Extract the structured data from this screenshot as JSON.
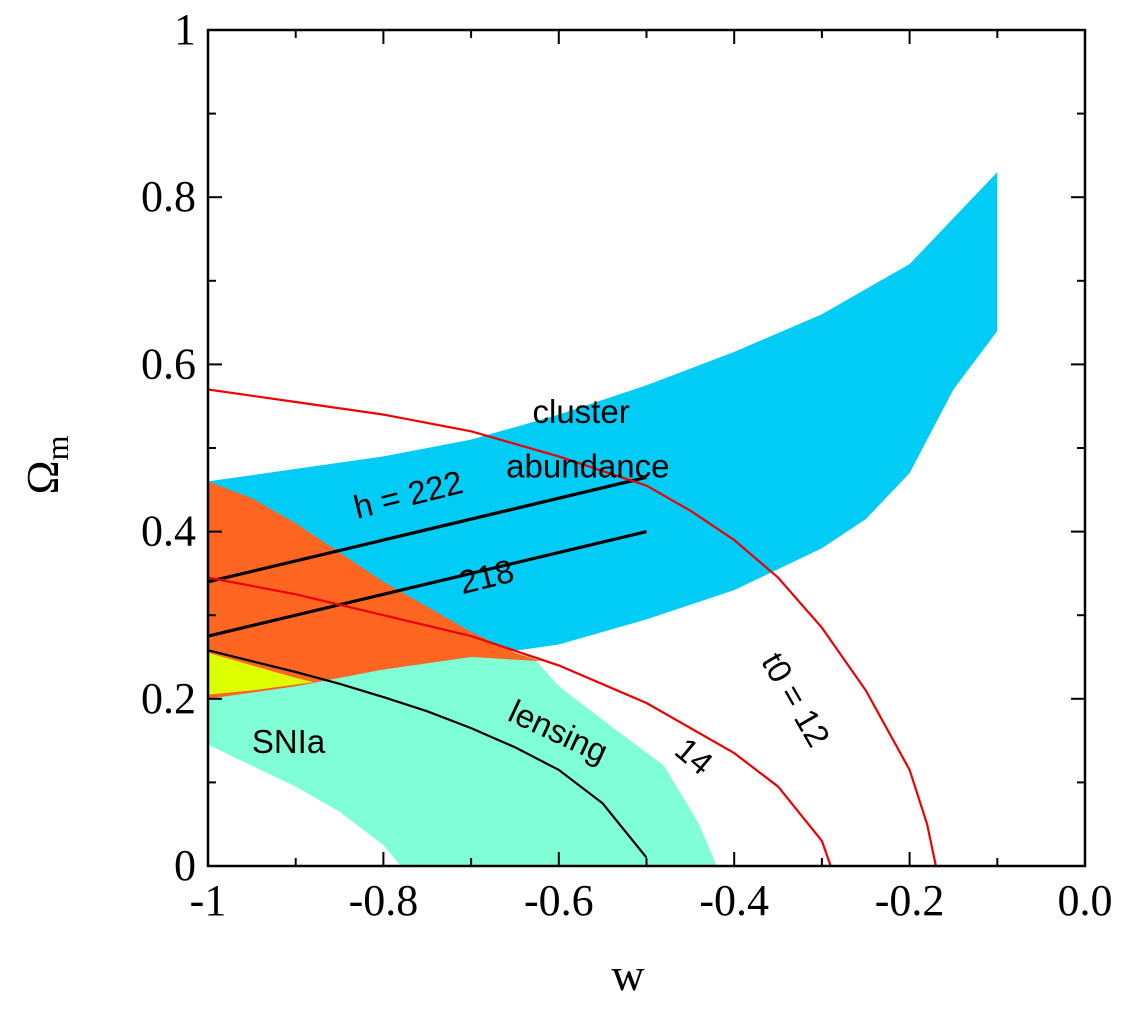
{
  "chart_data": {
    "type": "area",
    "xlabel": "w",
    "ylabel": "Ω",
    "ylabel_subscript": "m",
    "xlim": [
      -1.0,
      0.0
    ],
    "ylim": [
      0.0,
      1.0
    ],
    "xticks": [
      {
        "value": -1.0,
        "label": "-1"
      },
      {
        "value": -0.8,
        "label": "-0.8"
      },
      {
        "value": -0.6,
        "label": "-0.6"
      },
      {
        "value": -0.4,
        "label": "-0.4"
      },
      {
        "value": -0.2,
        "label": "-0.2"
      },
      {
        "value": 0.0,
        "label": "0.0"
      }
    ],
    "yticks": [
      {
        "value": 0.0,
        "label": "0"
      },
      {
        "value": 0.2,
        "label": "0.2"
      },
      {
        "value": 0.4,
        "label": "0.4"
      },
      {
        "value": 0.6,
        "label": "0.6"
      },
      {
        "value": 0.8,
        "label": "0.8"
      },
      {
        "value": 1.0,
        "label": "1"
      }
    ],
    "grid": false,
    "regions": [
      {
        "id": "snia",
        "label": "SNIa",
        "color": "#80ffd6",
        "points": [
          [
            -1.0,
            0.145
          ],
          [
            -0.95,
            0.12
          ],
          [
            -0.9,
            0.095
          ],
          [
            -0.85,
            0.065
          ],
          [
            -0.8,
            0.025
          ],
          [
            -0.78,
            0.0
          ],
          [
            -0.42,
            0.0
          ],
          [
            -0.44,
            0.05
          ],
          [
            -0.48,
            0.12
          ],
          [
            -0.55,
            0.175
          ],
          [
            -0.6,
            0.215
          ],
          [
            -0.63,
            0.25
          ],
          [
            -0.7,
            0.265
          ],
          [
            -0.8,
            0.26
          ],
          [
            -0.9,
            0.255
          ],
          [
            -1.0,
            0.255
          ]
        ]
      },
      {
        "id": "cluster-abundance",
        "label_lines": [
          "cluster",
          "abundance"
        ],
        "color": "#00ccf5",
        "points": [
          [
            -1.0,
            0.46
          ],
          [
            -0.9,
            0.475
          ],
          [
            -0.8,
            0.49
          ],
          [
            -0.7,
            0.51
          ],
          [
            -0.6,
            0.54
          ],
          [
            -0.5,
            0.575
          ],
          [
            -0.4,
            0.615
          ],
          [
            -0.3,
            0.66
          ],
          [
            -0.2,
            0.72
          ],
          [
            -0.1,
            0.83
          ],
          [
            -0.1,
            0.64
          ],
          [
            -0.15,
            0.57
          ],
          [
            -0.2,
            0.47
          ],
          [
            -0.25,
            0.415
          ],
          [
            -0.3,
            0.38
          ],
          [
            -0.4,
            0.33
          ],
          [
            -0.5,
            0.295
          ],
          [
            -0.6,
            0.265
          ],
          [
            -0.7,
            0.25
          ],
          [
            -0.8,
            0.235
          ],
          [
            -0.9,
            0.215
          ],
          [
            -1.0,
            0.2
          ]
        ]
      },
      {
        "id": "combined",
        "color": "#ff6622",
        "points": [
          [
            -1.0,
            0.46
          ],
          [
            -0.95,
            0.44
          ],
          [
            -0.9,
            0.41
          ],
          [
            -0.85,
            0.375
          ],
          [
            -0.8,
            0.34
          ],
          [
            -0.75,
            0.31
          ],
          [
            -0.7,
            0.28
          ],
          [
            -0.65,
            0.255
          ],
          [
            -0.62,
            0.245
          ],
          [
            -0.7,
            0.25
          ],
          [
            -0.8,
            0.235
          ],
          [
            -0.9,
            0.215
          ],
          [
            -1.0,
            0.2
          ]
        ]
      },
      {
        "id": "overlap-yellow",
        "color": "#ddff00",
        "points": [
          [
            -1.0,
            0.255
          ],
          [
            -0.95,
            0.24
          ],
          [
            -0.9,
            0.225
          ],
          [
            -0.88,
            0.22
          ],
          [
            -0.95,
            0.21
          ],
          [
            -1.0,
            0.205
          ]
        ]
      }
    ],
    "lines": [
      {
        "id": "h-222",
        "label": "h = 222",
        "color": "#000000",
        "points": [
          [
            -1.0,
            0.34
          ],
          [
            -0.5,
            0.465
          ]
        ]
      },
      {
        "id": "h-218",
        "label": "218",
        "color": "#000000",
        "points": [
          [
            -1.0,
            0.275
          ],
          [
            -0.5,
            0.4
          ]
        ]
      },
      {
        "id": "lensing",
        "label": "lensing",
        "color": "#000000",
        "points": [
          [
            -1.0,
            0.258
          ],
          [
            -0.95,
            0.245
          ],
          [
            -0.9,
            0.232
          ],
          [
            -0.85,
            0.218
          ],
          [
            -0.8,
            0.202
          ],
          [
            -0.75,
            0.185
          ],
          [
            -0.7,
            0.165
          ],
          [
            -0.65,
            0.142
          ],
          [
            -0.6,
            0.115
          ],
          [
            -0.55,
            0.075
          ],
          [
            -0.5,
            0.01
          ]
        ]
      },
      {
        "id": "t0-12",
        "label": "t0 = 12",
        "color": "#ee0000",
        "points": [
          [
            -1.0,
            0.57
          ],
          [
            -0.9,
            0.555
          ],
          [
            -0.8,
            0.54
          ],
          [
            -0.7,
            0.52
          ],
          [
            -0.6,
            0.49
          ],
          [
            -0.5,
            0.455
          ],
          [
            -0.45,
            0.425
          ],
          [
            -0.4,
            0.39
          ],
          [
            -0.35,
            0.345
          ],
          [
            -0.3,
            0.285
          ],
          [
            -0.25,
            0.21
          ],
          [
            -0.2,
            0.115
          ],
          [
            -0.18,
            0.05
          ],
          [
            -0.17,
            0.0
          ]
        ]
      },
      {
        "id": "t0-14",
        "label": "14",
        "color": "#ee0000",
        "points": [
          [
            -1.0,
            0.345
          ],
          [
            -0.9,
            0.325
          ],
          [
            -0.8,
            0.3
          ],
          [
            -0.7,
            0.275
          ],
          [
            -0.6,
            0.24
          ],
          [
            -0.5,
            0.195
          ],
          [
            -0.4,
            0.135
          ],
          [
            -0.35,
            0.095
          ],
          [
            -0.3,
            0.03
          ],
          [
            -0.29,
            0.0
          ]
        ]
      }
    ],
    "annotations": [
      {
        "id": "label-cluster-1",
        "text": "cluster",
        "x": -0.63,
        "y": 0.53,
        "rotate": 0
      },
      {
        "id": "label-cluster-2",
        "text": "abundance",
        "x": -0.66,
        "y": 0.465,
        "rotate": 0
      },
      {
        "id": "label-h222",
        "text": "h = 222",
        "x": -0.83,
        "y": 0.415,
        "rotate": -14
      },
      {
        "id": "label-218",
        "text": "218",
        "x": -0.71,
        "y": 0.325,
        "rotate": -14
      },
      {
        "id": "label-snia",
        "text": "SNIa",
        "x": -0.95,
        "y": 0.135,
        "rotate": 0
      },
      {
        "id": "label-lensing",
        "text": "lensing",
        "x": -0.66,
        "y": 0.175,
        "rotate": 25
      },
      {
        "id": "label-14",
        "text": "14",
        "x": -0.47,
        "y": 0.135,
        "rotate": 40
      },
      {
        "id": "label-t0-12",
        "text": "t0 = 12",
        "x": -0.37,
        "y": 0.245,
        "rotate": 60
      }
    ]
  }
}
